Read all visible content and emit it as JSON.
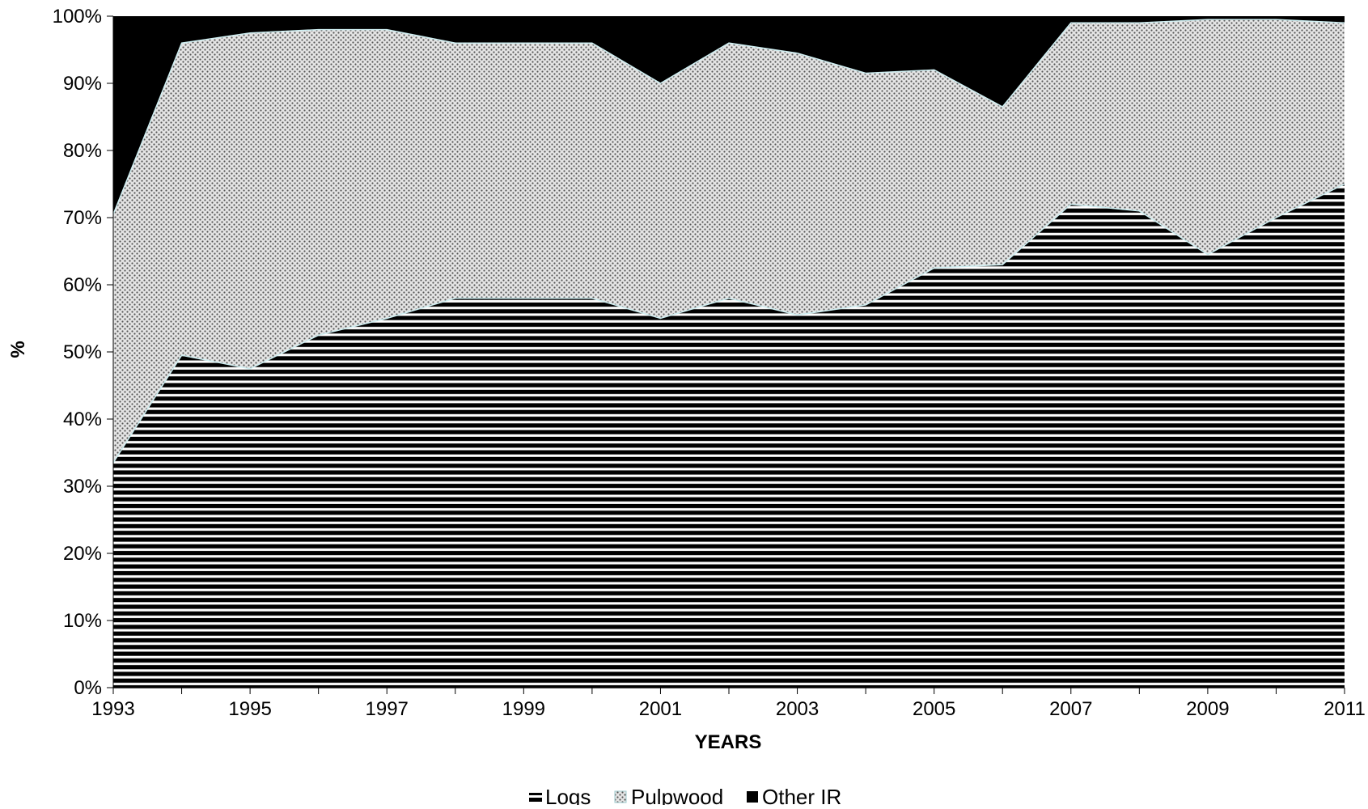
{
  "chart_data": {
    "type": "area",
    "stacked": "percent",
    "x": [
      1993,
      1994,
      1995,
      1996,
      1997,
      1998,
      1999,
      2000,
      2001,
      2002,
      2003,
      2004,
      2005,
      2006,
      2007,
      2008,
      2009,
      2010,
      2011
    ],
    "x_ticks": [
      "1993",
      "1995",
      "1997",
      "1999",
      "2001",
      "2003",
      "2005",
      "2007",
      "2009",
      "2011"
    ],
    "y_ticks": [
      "0%",
      "10%",
      "20%",
      "30%",
      "40%",
      "50%",
      "60%",
      "70%",
      "80%",
      "90%",
      "100%"
    ],
    "ylim": [
      0,
      100
    ],
    "xlabel": "YEARS",
    "ylabel": "%",
    "series": [
      {
        "name": "Logs",
        "pattern": "horizontal-stripes",
        "values": [
          33.5,
          49.5,
          47.5,
          52.5,
          55,
          58,
          58,
          58,
          55,
          58,
          55.5,
          57,
          62.5,
          63,
          72,
          71,
          64.5,
          70,
          75
        ]
      },
      {
        "name": "Pulpwood",
        "pattern": "dots",
        "values": [
          37,
          46.5,
          50,
          45.5,
          43,
          38,
          38,
          38,
          35,
          38,
          39,
          34.5,
          29.5,
          23.5,
          27,
          28,
          35,
          29.5,
          24
        ]
      },
      {
        "name": "Other IR",
        "pattern": "solid-black",
        "values": [
          29.5,
          4,
          2.5,
          2,
          2,
          4,
          4,
          4,
          10,
          4,
          5.5,
          8.5,
          8,
          13.5,
          1,
          1,
          0.5,
          0.5,
          1
        ]
      }
    ],
    "legend": {
      "position": "bottom-center"
    },
    "grid": false,
    "colors": {
      "logs_stripe": "#000000",
      "pulpwood_fill": "#d9d9d9",
      "pulpwood_edge": "#cfeff2",
      "other_fill": "#000000"
    }
  }
}
